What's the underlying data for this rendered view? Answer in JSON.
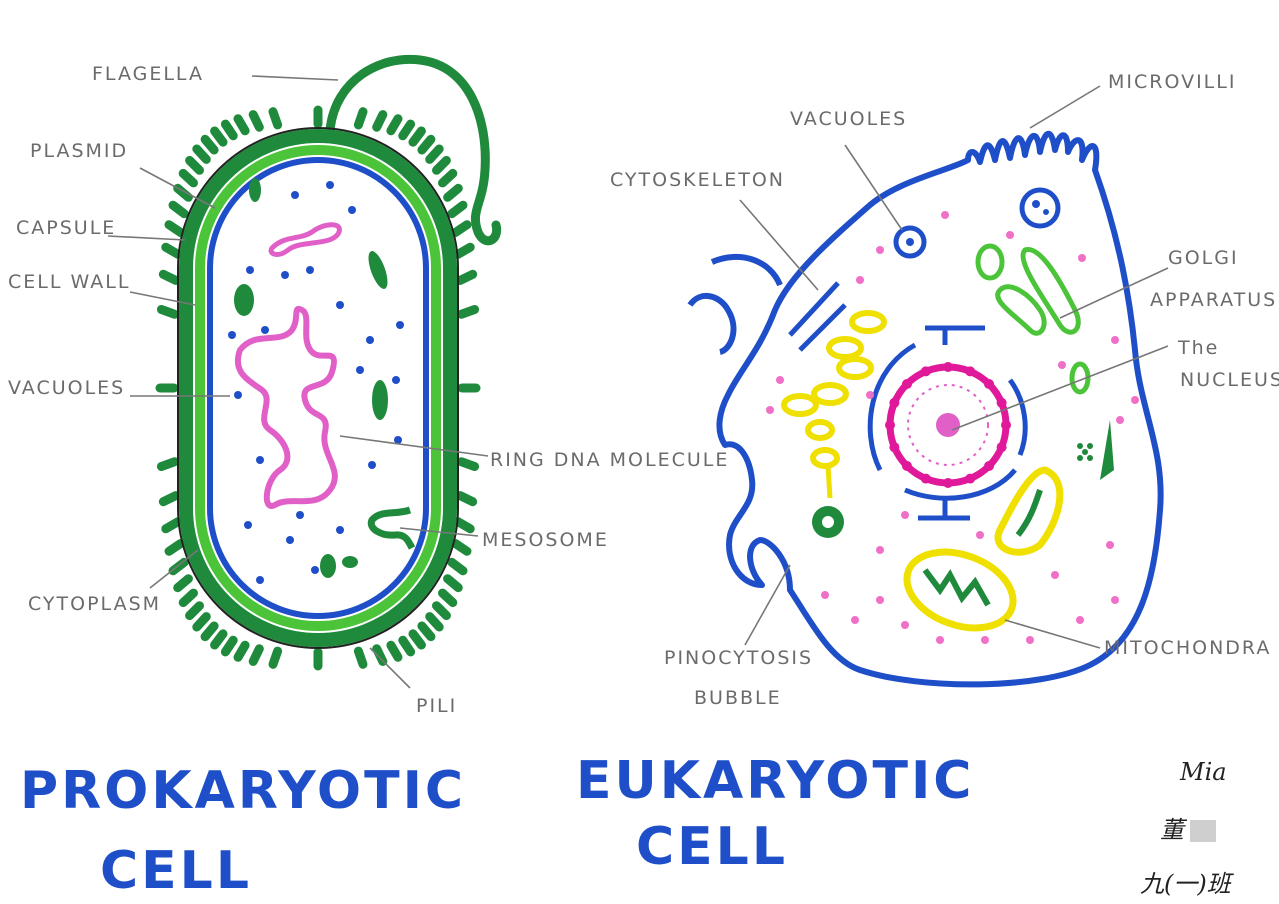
{
  "colors": {
    "green": "#1f8a3c",
    "light_green": "#4cc43a",
    "blue": "#1f4fc8",
    "pink": "#e060c8",
    "magenta": "#e0189a",
    "yellow": "#f0e000",
    "label_gray": "#6b6b6b"
  },
  "prokaryote": {
    "title_line1": "PROKARYOTIC",
    "title_line2": "CELL",
    "labels": {
      "flagella": "FLAGELLA",
      "plasmid": "PLASMID",
      "capsule": "CAPSULE",
      "cell_wall": "CELL WALL",
      "vacuoles": "VACUOLES",
      "cytoplasm": "CYTOPLASM",
      "ring_dna": "RING DNA MOLECULE",
      "mesosome": "MESOSOME",
      "pili": "PILI"
    }
  },
  "eukaryote": {
    "title_line1": "EUKARYOTIC",
    "title_line2": "CELL",
    "labels": {
      "vacuoles": "VACUOLES",
      "cytoskeleton": "CYTOSKELETON",
      "microvilli": "MICROVILLI",
      "golgi_line1": "GOLGI",
      "golgi_line2": "APPARATUS",
      "nucleus_line1": "The",
      "nucleus_line2": "NUCLEUS",
      "mitochondria": "MITOCHONDRA",
      "pinocytosis_line1": "PINOCYTOSIS",
      "pinocytosis_line2": "BUBBLE"
    }
  },
  "signature": {
    "name": "Mia",
    "chinese_name": "董",
    "class": "九(一)班"
  }
}
